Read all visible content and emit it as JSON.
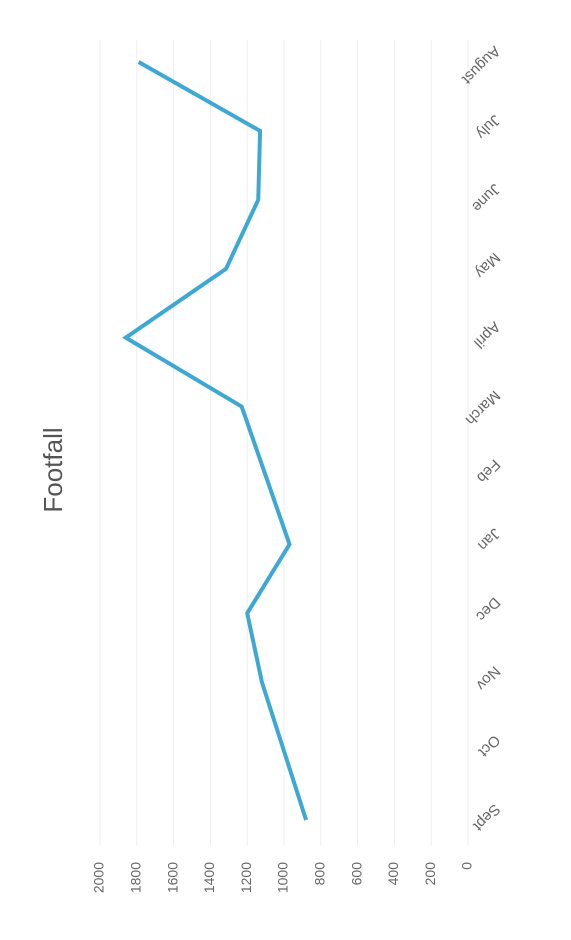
{
  "chart_data": {
    "type": "line",
    "title": "Footfall",
    "categories": [
      "Sept",
      "Oct",
      "Nov",
      "Dec",
      "Jan",
      "Feb",
      "March",
      "April",
      "May",
      "June",
      "July",
      "August"
    ],
    "series": [
      {
        "name": "Footfall",
        "color": "#3ea8d4",
        "values": [
          880,
          1000,
          1120,
          1200,
          970,
          1100,
          1230,
          1860,
          1315,
          1140,
          1130,
          1790
        ]
      }
    ],
    "ylim": [
      0,
      2000
    ],
    "yticks": [
      0,
      200,
      400,
      600,
      800,
      1000,
      1200,
      1400,
      1600,
      1800,
      2000
    ],
    "grid": true
  }
}
